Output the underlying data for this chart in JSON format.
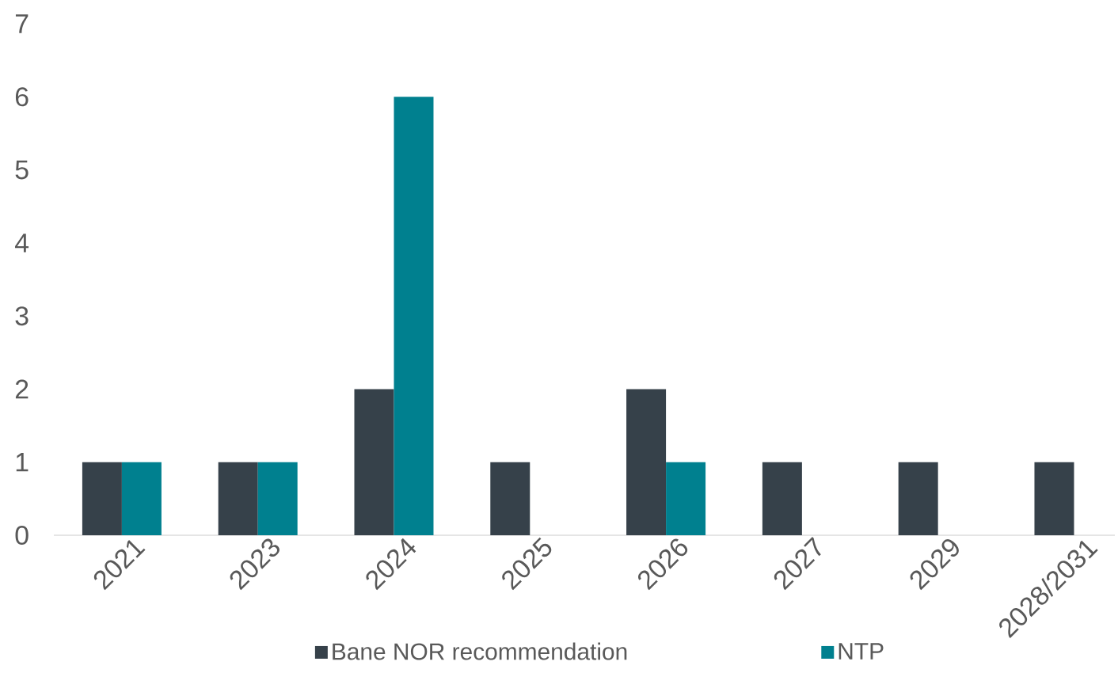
{
  "chart_data": {
    "type": "bar",
    "categories": [
      "2021",
      "2023",
      "2024",
      "2025",
      "2026",
      "2027",
      "2029",
      "2028/2031"
    ],
    "series": [
      {
        "name": "Bane NOR recommendation",
        "color": "#36414a",
        "values": [
          1,
          1,
          2,
          1,
          2,
          1,
          1,
          1
        ]
      },
      {
        "name": "NTP",
        "color": "#00808f",
        "values": [
          1,
          1,
          6,
          null,
          1,
          null,
          null,
          null
        ]
      }
    ],
    "ylim": [
      0,
      7
    ],
    "yticks": [
      0,
      1,
      2,
      3,
      4,
      5,
      6,
      7
    ],
    "grid": false,
    "legend": "bottom"
  }
}
